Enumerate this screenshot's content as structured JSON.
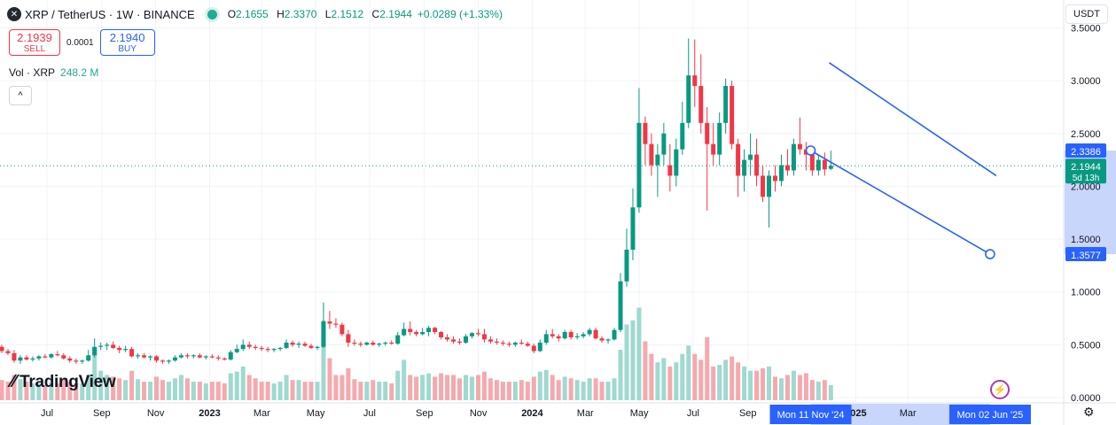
{
  "header": {
    "logo_icon": "xrp-logo-icon",
    "symbol": "XRP / TetherUS · 1W · BINANCE",
    "open_label": "O",
    "open": "2.1655",
    "high_label": "H",
    "high": "2.3370",
    "low_label": "L",
    "low": "2.1512",
    "close_label": "C",
    "close": "2.1944",
    "change": "+0.0289 (+1.33%)"
  },
  "trade": {
    "sell_price": "2.1939",
    "sell_label": "SELL",
    "spread": "0.0001",
    "buy_price": "2.1940",
    "buy_label": "BUY"
  },
  "volume_label": {
    "name": "Vol · XRP",
    "value": "248.2 M"
  },
  "collapse_label": "^",
  "currency_button": "USDT",
  "branding": "TradingView",
  "chart_data": {
    "type": "candlestick",
    "symbol": "XRP/USDT",
    "interval": "1W",
    "y_ticks": [
      "3.5000",
      "3.0000",
      "2.5000",
      "2.0000",
      "1.5000",
      "1.0000",
      "0.5000",
      "0.0000"
    ],
    "y_tick_values": [
      3.5,
      3.0,
      2.5,
      2.0,
      1.5,
      1.0,
      0.5,
      0.0
    ],
    "ylim": [
      0,
      3.5
    ],
    "x_ticks": [
      "Jul",
      "Sep",
      "Nov",
      "2023",
      "Mar",
      "May",
      "Jul",
      "Sep",
      "Nov",
      "2024",
      "Mar",
      "May",
      "Jul",
      "Sep",
      "2025",
      "Mar"
    ],
    "x_tick_dates": [
      "2022-07-01",
      "2022-09-01",
      "2022-11-01",
      "2023-01-01",
      "2023-03-01",
      "2023-05-01",
      "2023-07-01",
      "2023-09-01",
      "2023-11-01",
      "2024-01-01",
      "2024-03-01",
      "2024-05-01",
      "2024-07-01",
      "2024-09-01",
      "2025-01-01",
      "2025-03-01"
    ],
    "price_labels": {
      "upper_line": "2.3386",
      "last_price": "2.1944",
      "countdown": "5d 13h",
      "lower_line": "1.3577"
    },
    "date_labels": [
      "Mon 11 Nov '24",
      "Mon 02 Jun '25"
    ],
    "trendlines": [
      {
        "name": "lower-channel",
        "from": {
          "date": "2024-11-11",
          "price": 2.3386
        },
        "to": {
          "date": "2025-06-02",
          "price": 1.3577
        }
      },
      {
        "name": "upper-channel",
        "from": {
          "date": "2024-12-02",
          "price": 3.17
        },
        "to": {
          "date": "2025-06-09",
          "price": 2.1
        }
      }
    ],
    "candles": [
      {
        "o": 0.48,
        "h": 0.5,
        "l": 0.42,
        "c": 0.44
      },
      {
        "o": 0.44,
        "h": 0.46,
        "l": 0.4,
        "c": 0.42
      },
      {
        "o": 0.42,
        "h": 0.45,
        "l": 0.33,
        "c": 0.35
      },
      {
        "o": 0.35,
        "h": 0.4,
        "l": 0.32,
        "c": 0.38
      },
      {
        "o": 0.38,
        "h": 0.4,
        "l": 0.35,
        "c": 0.36
      },
      {
        "o": 0.36,
        "h": 0.39,
        "l": 0.34,
        "c": 0.37
      },
      {
        "o": 0.37,
        "h": 0.4,
        "l": 0.35,
        "c": 0.39
      },
      {
        "o": 0.39,
        "h": 0.41,
        "l": 0.37,
        "c": 0.38
      },
      {
        "o": 0.38,
        "h": 0.42,
        "l": 0.37,
        "c": 0.41
      },
      {
        "o": 0.41,
        "h": 0.44,
        "l": 0.39,
        "c": 0.4
      },
      {
        "o": 0.4,
        "h": 0.42,
        "l": 0.36,
        "c": 0.37
      },
      {
        "o": 0.37,
        "h": 0.39,
        "l": 0.33,
        "c": 0.35
      },
      {
        "o": 0.35,
        "h": 0.37,
        "l": 0.32,
        "c": 0.34
      },
      {
        "o": 0.34,
        "h": 0.36,
        "l": 0.32,
        "c": 0.35
      },
      {
        "o": 0.35,
        "h": 0.45,
        "l": 0.34,
        "c": 0.4
      },
      {
        "o": 0.4,
        "h": 0.56,
        "l": 0.38,
        "c": 0.48
      },
      {
        "o": 0.48,
        "h": 0.52,
        "l": 0.45,
        "c": 0.49
      },
      {
        "o": 0.49,
        "h": 0.52,
        "l": 0.45,
        "c": 0.5
      },
      {
        "o": 0.5,
        "h": 0.53,
        "l": 0.46,
        "c": 0.47
      },
      {
        "o": 0.47,
        "h": 0.49,
        "l": 0.42,
        "c": 0.45
      },
      {
        "o": 0.45,
        "h": 0.49,
        "l": 0.43,
        "c": 0.46
      },
      {
        "o": 0.46,
        "h": 0.48,
        "l": 0.38,
        "c": 0.39
      },
      {
        "o": 0.39,
        "h": 0.42,
        "l": 0.37,
        "c": 0.4
      },
      {
        "o": 0.4,
        "h": 0.42,
        "l": 0.37,
        "c": 0.38
      },
      {
        "o": 0.38,
        "h": 0.4,
        "l": 0.35,
        "c": 0.39
      },
      {
        "o": 0.39,
        "h": 0.4,
        "l": 0.33,
        "c": 0.35
      },
      {
        "o": 0.35,
        "h": 0.36,
        "l": 0.32,
        "c": 0.34
      },
      {
        "o": 0.34,
        "h": 0.36,
        "l": 0.32,
        "c": 0.35
      },
      {
        "o": 0.35,
        "h": 0.4,
        "l": 0.34,
        "c": 0.38
      },
      {
        "o": 0.38,
        "h": 0.42,
        "l": 0.37,
        "c": 0.4
      },
      {
        "o": 0.4,
        "h": 0.42,
        "l": 0.37,
        "c": 0.39
      },
      {
        "o": 0.39,
        "h": 0.41,
        "l": 0.37,
        "c": 0.4
      },
      {
        "o": 0.4,
        "h": 0.42,
        "l": 0.37,
        "c": 0.38
      },
      {
        "o": 0.38,
        "h": 0.4,
        "l": 0.36,
        "c": 0.39
      },
      {
        "o": 0.39,
        "h": 0.41,
        "l": 0.37,
        "c": 0.38
      },
      {
        "o": 0.38,
        "h": 0.4,
        "l": 0.35,
        "c": 0.37
      },
      {
        "o": 0.37,
        "h": 0.38,
        "l": 0.35,
        "c": 0.36
      },
      {
        "o": 0.36,
        "h": 0.45,
        "l": 0.35,
        "c": 0.43
      },
      {
        "o": 0.43,
        "h": 0.5,
        "l": 0.42,
        "c": 0.46
      },
      {
        "o": 0.46,
        "h": 0.55,
        "l": 0.44,
        "c": 0.5
      },
      {
        "o": 0.5,
        "h": 0.53,
        "l": 0.46,
        "c": 0.48
      },
      {
        "o": 0.48,
        "h": 0.5,
        "l": 0.45,
        "c": 0.47
      },
      {
        "o": 0.47,
        "h": 0.49,
        "l": 0.44,
        "c": 0.46
      },
      {
        "o": 0.46,
        "h": 0.48,
        "l": 0.43,
        "c": 0.45
      },
      {
        "o": 0.45,
        "h": 0.47,
        "l": 0.43,
        "c": 0.46
      },
      {
        "o": 0.46,
        "h": 0.48,
        "l": 0.44,
        "c": 0.47
      },
      {
        "o": 0.47,
        "h": 0.55,
        "l": 0.46,
        "c": 0.52
      },
      {
        "o": 0.52,
        "h": 0.54,
        "l": 0.48,
        "c": 0.5
      },
      {
        "o": 0.5,
        "h": 0.53,
        "l": 0.47,
        "c": 0.51
      },
      {
        "o": 0.51,
        "h": 0.53,
        "l": 0.48,
        "c": 0.49
      },
      {
        "o": 0.49,
        "h": 0.51,
        "l": 0.46,
        "c": 0.47
      },
      {
        "o": 0.47,
        "h": 0.49,
        "l": 0.45,
        "c": 0.48
      },
      {
        "o": 0.48,
        "h": 0.9,
        "l": 0.47,
        "c": 0.72
      },
      {
        "o": 0.72,
        "h": 0.82,
        "l": 0.65,
        "c": 0.7
      },
      {
        "o": 0.7,
        "h": 0.75,
        "l": 0.66,
        "c": 0.69
      },
      {
        "o": 0.69,
        "h": 0.71,
        "l": 0.58,
        "c": 0.6
      },
      {
        "o": 0.6,
        "h": 0.64,
        "l": 0.48,
        "c": 0.52
      },
      {
        "o": 0.52,
        "h": 0.55,
        "l": 0.49,
        "c": 0.51
      },
      {
        "o": 0.51,
        "h": 0.53,
        "l": 0.48,
        "c": 0.5
      },
      {
        "o": 0.5,
        "h": 0.53,
        "l": 0.49,
        "c": 0.52
      },
      {
        "o": 0.52,
        "h": 0.54,
        "l": 0.49,
        "c": 0.5
      },
      {
        "o": 0.5,
        "h": 0.52,
        "l": 0.48,
        "c": 0.51
      },
      {
        "o": 0.51,
        "h": 0.53,
        "l": 0.49,
        "c": 0.52
      },
      {
        "o": 0.52,
        "h": 0.54,
        "l": 0.5,
        "c": 0.51
      },
      {
        "o": 0.51,
        "h": 0.62,
        "l": 0.5,
        "c": 0.59
      },
      {
        "o": 0.59,
        "h": 0.71,
        "l": 0.58,
        "c": 0.65
      },
      {
        "o": 0.65,
        "h": 0.72,
        "l": 0.59,
        "c": 0.62
      },
      {
        "o": 0.62,
        "h": 0.64,
        "l": 0.58,
        "c": 0.6
      },
      {
        "o": 0.6,
        "h": 0.66,
        "l": 0.59,
        "c": 0.62
      },
      {
        "o": 0.62,
        "h": 0.68,
        "l": 0.58,
        "c": 0.66
      },
      {
        "o": 0.66,
        "h": 0.67,
        "l": 0.6,
        "c": 0.62
      },
      {
        "o": 0.62,
        "h": 0.63,
        "l": 0.55,
        "c": 0.57
      },
      {
        "o": 0.57,
        "h": 0.6,
        "l": 0.53,
        "c": 0.55
      },
      {
        "o": 0.55,
        "h": 0.58,
        "l": 0.51,
        "c": 0.53
      },
      {
        "o": 0.53,
        "h": 0.56,
        "l": 0.5,
        "c": 0.52
      },
      {
        "o": 0.52,
        "h": 0.6,
        "l": 0.51,
        "c": 0.58
      },
      {
        "o": 0.58,
        "h": 0.62,
        "l": 0.56,
        "c": 0.61
      },
      {
        "o": 0.61,
        "h": 0.65,
        "l": 0.58,
        "c": 0.6
      },
      {
        "o": 0.6,
        "h": 0.65,
        "l": 0.52,
        "c": 0.55
      },
      {
        "o": 0.55,
        "h": 0.58,
        "l": 0.51,
        "c": 0.53
      },
      {
        "o": 0.53,
        "h": 0.56,
        "l": 0.5,
        "c": 0.52
      },
      {
        "o": 0.52,
        "h": 0.54,
        "l": 0.49,
        "c": 0.51
      },
      {
        "o": 0.51,
        "h": 0.53,
        "l": 0.48,
        "c": 0.5
      },
      {
        "o": 0.5,
        "h": 0.53,
        "l": 0.48,
        "c": 0.52
      },
      {
        "o": 0.52,
        "h": 0.55,
        "l": 0.5,
        "c": 0.51
      },
      {
        "o": 0.51,
        "h": 0.53,
        "l": 0.48,
        "c": 0.49
      },
      {
        "o": 0.49,
        "h": 0.51,
        "l": 0.42,
        "c": 0.44
      },
      {
        "o": 0.44,
        "h": 0.55,
        "l": 0.43,
        "c": 0.52
      },
      {
        "o": 0.52,
        "h": 0.64,
        "l": 0.5,
        "c": 0.6
      },
      {
        "o": 0.6,
        "h": 0.65,
        "l": 0.56,
        "c": 0.58
      },
      {
        "o": 0.58,
        "h": 0.6,
        "l": 0.53,
        "c": 0.56
      },
      {
        "o": 0.56,
        "h": 0.64,
        "l": 0.55,
        "c": 0.62
      },
      {
        "o": 0.62,
        "h": 0.64,
        "l": 0.55,
        "c": 0.57
      },
      {
        "o": 0.57,
        "h": 0.61,
        "l": 0.55,
        "c": 0.58
      },
      {
        "o": 0.58,
        "h": 0.62,
        "l": 0.56,
        "c": 0.6
      },
      {
        "o": 0.6,
        "h": 0.66,
        "l": 0.58,
        "c": 0.64
      },
      {
        "o": 0.64,
        "h": 0.66,
        "l": 0.55,
        "c": 0.56
      },
      {
        "o": 0.56,
        "h": 0.58,
        "l": 0.52,
        "c": 0.54
      },
      {
        "o": 0.54,
        "h": 0.56,
        "l": 0.51,
        "c": 0.55
      },
      {
        "o": 0.55,
        "h": 0.66,
        "l": 0.54,
        "c": 0.64
      },
      {
        "o": 0.64,
        "h": 1.18,
        "l": 0.62,
        "c": 1.1
      },
      {
        "o": 1.1,
        "h": 1.6,
        "l": 1.05,
        "c": 1.4
      },
      {
        "o": 1.4,
        "h": 1.98,
        "l": 1.3,
        "c": 1.8
      },
      {
        "o": 1.8,
        "h": 2.93,
        "l": 1.75,
        "c": 2.6
      },
      {
        "o": 2.6,
        "h": 2.66,
        "l": 2.2,
        "c": 2.4
      },
      {
        "o": 2.4,
        "h": 2.5,
        "l": 2.1,
        "c": 2.2
      },
      {
        "o": 2.2,
        "h": 2.4,
        "l": 1.9,
        "c": 2.3
      },
      {
        "o": 2.3,
        "h": 2.6,
        "l": 2.2,
        "c": 2.5
      },
      {
        "o": 2.2,
        "h": 2.4,
        "l": 1.95,
        "c": 2.1
      },
      {
        "o": 2.1,
        "h": 2.45,
        "l": 2.0,
        "c": 2.35
      },
      {
        "o": 2.35,
        "h": 2.8,
        "l": 2.3,
        "c": 2.6
      },
      {
        "o": 2.6,
        "h": 3.4,
        "l": 2.55,
        "c": 3.05
      },
      {
        "o": 3.05,
        "h": 3.39,
        "l": 2.75,
        "c": 2.95
      },
      {
        "o": 2.95,
        "h": 3.25,
        "l": 2.5,
        "c": 2.6
      },
      {
        "o": 2.6,
        "h": 2.75,
        "l": 1.77,
        "c": 2.4
      },
      {
        "o": 2.4,
        "h": 2.6,
        "l": 2.2,
        "c": 2.3
      },
      {
        "o": 2.3,
        "h": 2.7,
        "l": 2.2,
        "c": 2.6
      },
      {
        "o": 2.6,
        "h": 3.02,
        "l": 2.5,
        "c": 2.95
      },
      {
        "o": 2.95,
        "h": 3.0,
        "l": 2.35,
        "c": 2.4
      },
      {
        "o": 2.4,
        "h": 2.45,
        "l": 1.9,
        "c": 2.1
      },
      {
        "o": 2.1,
        "h": 2.35,
        "l": 1.95,
        "c": 2.25
      },
      {
        "o": 2.25,
        "h": 2.5,
        "l": 2.1,
        "c": 2.3
      },
      {
        "o": 2.3,
        "h": 2.45,
        "l": 2.0,
        "c": 2.1
      },
      {
        "o": 2.1,
        "h": 2.2,
        "l": 1.85,
        "c": 1.9
      },
      {
        "o": 1.9,
        "h": 2.15,
        "l": 1.61,
        "c": 2.1
      },
      {
        "o": 2.1,
        "h": 2.2,
        "l": 1.95,
        "c": 2.05
      },
      {
        "o": 2.05,
        "h": 2.3,
        "l": 2.0,
        "c": 2.2
      },
      {
        "o": 2.2,
        "h": 2.35,
        "l": 2.1,
        "c": 2.15
      },
      {
        "o": 2.15,
        "h": 2.45,
        "l": 2.1,
        "c": 2.4
      },
      {
        "o": 2.4,
        "h": 2.65,
        "l": 2.3,
        "c": 2.35
      },
      {
        "o": 2.35,
        "h": 2.42,
        "l": 2.15,
        "c": 2.3
      },
      {
        "o": 2.3,
        "h": 2.35,
        "l": 2.1,
        "c": 2.15
      },
      {
        "o": 2.15,
        "h": 2.3,
        "l": 2.1,
        "c": 2.25
      },
      {
        "o": 2.25,
        "h": 2.32,
        "l": 2.1,
        "c": 2.16
      },
      {
        "o": 2.1655,
        "h": 2.337,
        "l": 2.1512,
        "c": 2.1944
      }
    ],
    "volume": [
      0.24,
      0.22,
      0.3,
      0.25,
      0.22,
      0.2,
      0.2,
      0.18,
      0.21,
      0.2,
      0.25,
      0.22,
      0.2,
      0.2,
      0.3,
      0.62,
      0.35,
      0.3,
      0.28,
      0.26,
      0.24,
      0.35,
      0.25,
      0.22,
      0.22,
      0.28,
      0.24,
      0.22,
      0.26,
      0.3,
      0.26,
      0.22,
      0.22,
      0.2,
      0.22,
      0.22,
      0.2,
      0.32,
      0.34,
      0.4,
      0.3,
      0.26,
      0.22,
      0.22,
      0.2,
      0.22,
      0.3,
      0.24,
      0.24,
      0.22,
      0.22,
      0.22,
      0.95,
      0.5,
      0.3,
      0.3,
      0.38,
      0.25,
      0.22,
      0.22,
      0.24,
      0.22,
      0.22,
      0.2,
      0.35,
      0.48,
      0.3,
      0.28,
      0.3,
      0.32,
      0.28,
      0.32,
      0.3,
      0.3,
      0.26,
      0.3,
      0.28,
      0.3,
      0.34,
      0.26,
      0.24,
      0.22,
      0.22,
      0.22,
      0.24,
      0.22,
      0.28,
      0.34,
      0.36,
      0.3,
      0.24,
      0.28,
      0.26,
      0.24,
      0.22,
      0.26,
      0.26,
      0.22,
      0.22,
      0.26,
      0.6,
      0.9,
      0.95,
      1.1,
      0.7,
      0.55,
      0.45,
      0.5,
      0.4,
      0.45,
      0.55,
      0.65,
      0.55,
      0.48,
      0.75,
      0.4,
      0.42,
      0.48,
      0.52,
      0.45,
      0.4,
      0.35,
      0.35,
      0.38,
      0.4,
      0.28,
      0.26,
      0.3,
      0.35,
      0.3,
      0.32,
      0.24,
      0.22,
      0.24,
      0.18
    ]
  }
}
